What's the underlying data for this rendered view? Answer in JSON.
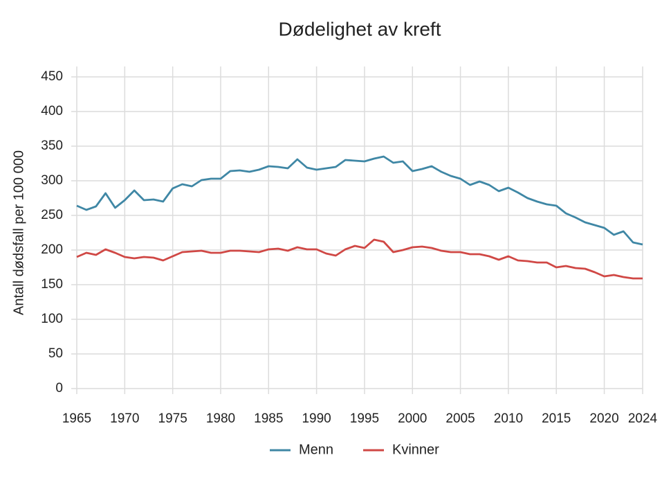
{
  "chart_data": {
    "type": "line",
    "title": "Dødelighet av kreft",
    "y_label": "Antall dødsfall per 100 000",
    "x": [
      1965,
      1966,
      1967,
      1968,
      1969,
      1970,
      1971,
      1972,
      1973,
      1974,
      1975,
      1976,
      1977,
      1978,
      1979,
      1980,
      1981,
      1982,
      1983,
      1984,
      1985,
      1986,
      1987,
      1988,
      1989,
      1990,
      1991,
      1992,
      1993,
      1994,
      1995,
      1996,
      1997,
      1998,
      1999,
      2000,
      2001,
      2002,
      2003,
      2004,
      2005,
      2006,
      2007,
      2008,
      2009,
      2010,
      2011,
      2012,
      2013,
      2014,
      2015,
      2016,
      2017,
      2018,
      2019,
      2020,
      2021,
      2022,
      2023,
      2024
    ],
    "series": [
      {
        "name": "Menn",
        "color": "#3f87a5",
        "values": [
          264,
          258,
          263,
          282,
          261,
          272,
          286,
          272,
          273,
          270,
          289,
          295,
          292,
          301,
          303,
          303,
          314,
          315,
          313,
          316,
          321,
          320,
          318,
          331,
          319,
          316,
          318,
          320,
          330,
          329,
          328,
          332,
          335,
          326,
          328,
          314,
          317,
          321,
          313,
          307,
          303,
          294,
          299,
          294,
          285,
          290,
          283,
          275,
          270,
          266,
          264,
          253,
          247,
          240,
          236,
          232,
          222,
          227,
          211,
          208
        ]
      },
      {
        "name": "Kvinner",
        "color": "#d04845",
        "values": [
          190,
          196,
          193,
          201,
          196,
          190,
          188,
          190,
          189,
          185,
          191,
          197,
          198,
          199,
          196,
          196,
          199,
          199,
          198,
          197,
          201,
          202,
          199,
          204,
          201,
          201,
          195,
          192,
          201,
          206,
          203,
          215,
          212,
          197,
          200,
          204,
          205,
          203,
          199,
          197,
          197,
          194,
          194,
          191,
          186,
          191,
          185,
          184,
          182,
          182,
          175,
          177,
          174,
          173,
          168,
          162,
          164,
          161,
          159,
          159
        ]
      }
    ],
    "xlim": [
      1965,
      2024
    ],
    "xticks": [
      1965,
      1970,
      1975,
      1980,
      1985,
      1990,
      1995,
      2000,
      2005,
      2010,
      2015,
      2020,
      2024
    ],
    "ylim": [
      0,
      450
    ],
    "yticks": [
      0,
      50,
      100,
      150,
      200,
      250,
      300,
      350,
      400,
      450
    ],
    "grid": true,
    "legend": "bottom"
  }
}
